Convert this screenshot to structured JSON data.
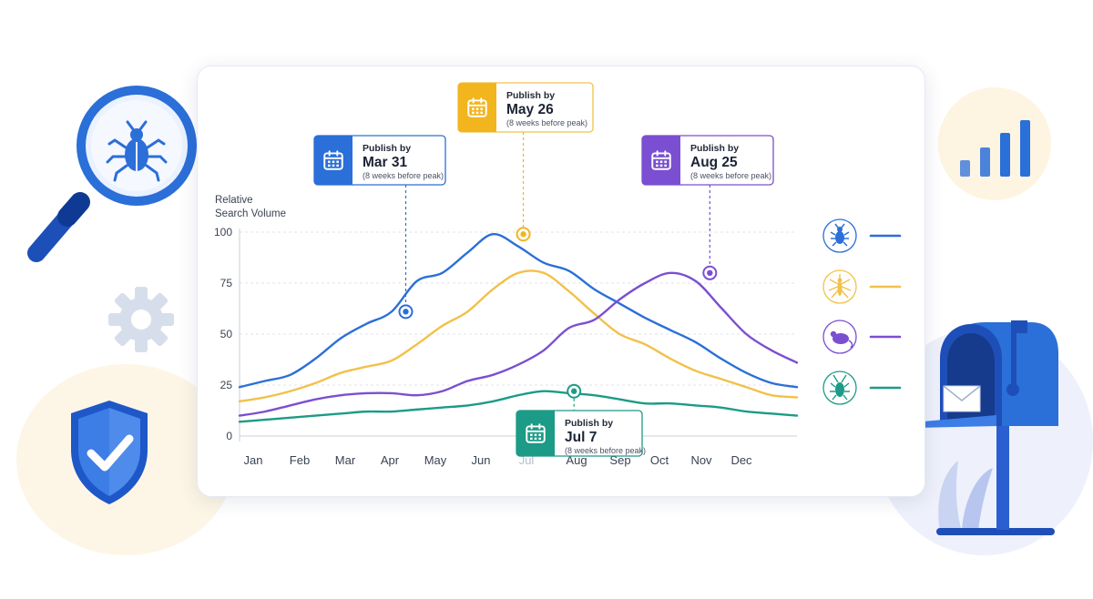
{
  "chart_data": {
    "type": "line",
    "ylabel": "Relative\nSearch Volume",
    "xlabel": "",
    "title": "",
    "ylim": [
      0,
      100
    ],
    "yticks": [
      0,
      25,
      50,
      75,
      100
    ],
    "grid": true,
    "legend": "right",
    "categories": [
      "Jan",
      "Feb",
      "Mar",
      "Apr",
      "May",
      "Jun",
      "Jul",
      "Aug",
      "Sep",
      "Oct",
      "Nov",
      "Dec"
    ],
    "hidden_tick_label": "Jul",
    "series": [
      {
        "icon": "beetle-icon",
        "color": "#2b6fd8",
        "points": [
          [
            0,
            24
          ],
          [
            0.5,
            27
          ],
          [
            1,
            30
          ],
          [
            1.5,
            38
          ],
          [
            2,
            48
          ],
          [
            2.5,
            55
          ],
          [
            3,
            61
          ],
          [
            3.5,
            76
          ],
          [
            4,
            80
          ],
          [
            4.5,
            90
          ],
          [
            5,
            99
          ],
          [
            5.5,
            93
          ],
          [
            6,
            85
          ],
          [
            6.5,
            81
          ],
          [
            7,
            72
          ],
          [
            7.5,
            65
          ],
          [
            8,
            58
          ],
          [
            8.5,
            52
          ],
          [
            9,
            46
          ],
          [
            9.5,
            38
          ],
          [
            10,
            31
          ],
          [
            10.5,
            26
          ],
          [
            11,
            24
          ]
        ]
      },
      {
        "icon": "mosquito-icon",
        "color": "#f2c14a",
        "points": [
          [
            0,
            17
          ],
          [
            0.5,
            19
          ],
          [
            1,
            22
          ],
          [
            1.5,
            26
          ],
          [
            2,
            31
          ],
          [
            2.5,
            34
          ],
          [
            3,
            37
          ],
          [
            3.5,
            45
          ],
          [
            4,
            54
          ],
          [
            4.5,
            61
          ],
          [
            5,
            72
          ],
          [
            5.5,
            80
          ],
          [
            6,
            80
          ],
          [
            6.5,
            71
          ],
          [
            7,
            60
          ],
          [
            7.5,
            50
          ],
          [
            8,
            45
          ],
          [
            8.5,
            38
          ],
          [
            9,
            32
          ],
          [
            9.5,
            28
          ],
          [
            10,
            24
          ],
          [
            10.5,
            20
          ],
          [
            11,
            19
          ]
        ]
      },
      {
        "icon": "mouse-icon",
        "color": "#7b4fd1",
        "points": [
          [
            0,
            10
          ],
          [
            0.5,
            12
          ],
          [
            1,
            15
          ],
          [
            1.5,
            18
          ],
          [
            2,
            20
          ],
          [
            2.5,
            21
          ],
          [
            3,
            21
          ],
          [
            3.5,
            20
          ],
          [
            4,
            22
          ],
          [
            4.5,
            27
          ],
          [
            5,
            30
          ],
          [
            5.5,
            35
          ],
          [
            6,
            42
          ],
          [
            6.5,
            53
          ],
          [
            7,
            57
          ],
          [
            7.5,
            67
          ],
          [
            8,
            75
          ],
          [
            8.5,
            80
          ],
          [
            9,
            76
          ],
          [
            9.5,
            63
          ],
          [
            10,
            50
          ],
          [
            10.5,
            42
          ],
          [
            11,
            36
          ]
        ]
      },
      {
        "icon": "cockroach-icon",
        "color": "#1c9b86",
        "points": [
          [
            0,
            7
          ],
          [
            0.5,
            8
          ],
          [
            1,
            9
          ],
          [
            1.5,
            10
          ],
          [
            2,
            11
          ],
          [
            2.5,
            12
          ],
          [
            3,
            12
          ],
          [
            3.5,
            13
          ],
          [
            4,
            14
          ],
          [
            4.5,
            15
          ],
          [
            5,
            17
          ],
          [
            5.5,
            20
          ],
          [
            6,
            22
          ],
          [
            6.5,
            21
          ],
          [
            7,
            20
          ],
          [
            7.5,
            18
          ],
          [
            8,
            16
          ],
          [
            8.5,
            16
          ],
          [
            9,
            15
          ],
          [
            9.5,
            14
          ],
          [
            10,
            12
          ],
          [
            10.5,
            11
          ],
          [
            11,
            10
          ]
        ]
      }
    ],
    "annotations": [
      {
        "series_index": 0,
        "x": 3.28,
        "y": 61,
        "heading": "Publish by",
        "date": "Mar 31",
        "note": "(8 weeks before peak)",
        "color": "#2b6fd8",
        "border": "#2b6fd8"
      },
      {
        "series_index": 0,
        "x": 5.6,
        "y": 99,
        "heading": "Publish by",
        "date": "May 26",
        "note": "(8 weeks before peak)",
        "color": "#f2b51d",
        "border": "#f2c14a"
      },
      {
        "series_index": 2,
        "x": 9.28,
        "y": 80,
        "heading": "Publish by",
        "date": "Aug 25",
        "note": "(8 weeks before peak)",
        "color": "#7b4fd1",
        "border": "#7b4fd1"
      },
      {
        "series_index": 3,
        "x": 6.6,
        "y": 22,
        "heading": "Publish by",
        "date": "Jul 7",
        "note": "(8 weeks before peak)",
        "color": "#1c9b86",
        "border": "#1c9b86"
      }
    ]
  },
  "decorations": {
    "magnifier": "magnifier-bug-icon",
    "gear": "gear-icon",
    "shield": "shield-check-icon",
    "bars": "bar-chart-icon",
    "mailbox": "mailbox-icon"
  }
}
